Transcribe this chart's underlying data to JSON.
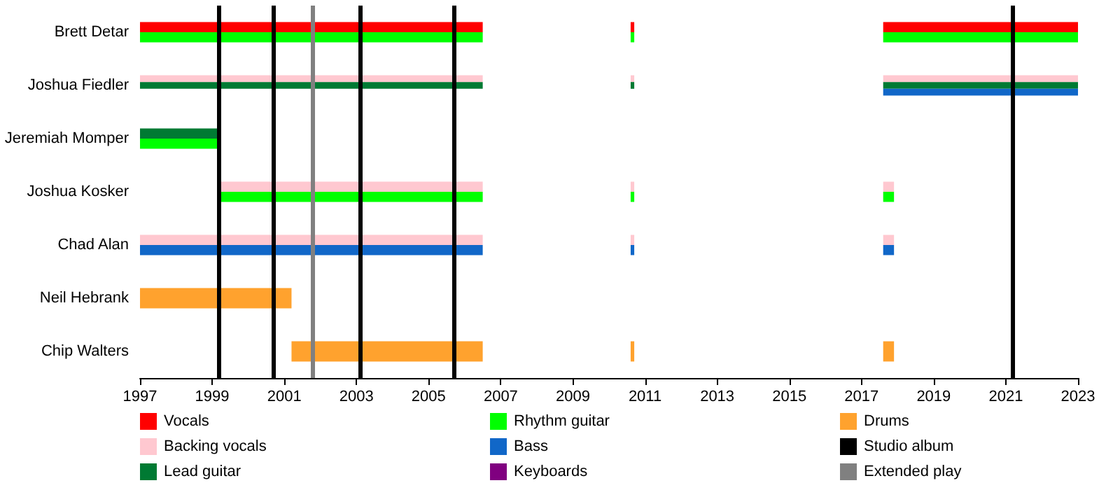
{
  "chart_data": {
    "type": "bar",
    "orientation": "horizontal",
    "categories": [
      "Brett Detar",
      "Joshua Fiedler",
      "Jeremiah Momper",
      "Joshua Kosker",
      "Chad Alan",
      "Neil Hebrank",
      "Chip Walters"
    ],
    "series": [
      {
        "name": "Vocals",
        "color": "#ff0000",
        "base": [
          1997,
          null,
          null,
          null,
          null,
          null,
          null
        ],
        "values": [
          9.5,
          null,
          null,
          null,
          null,
          null,
          null
        ]
      },
      {
        "color": "#ff0000",
        "base": [
          2010.6,
          null,
          null,
          null,
          null,
          null,
          null
        ],
        "values": [
          0.1,
          null,
          null,
          null,
          null,
          null,
          null
        ]
      },
      {
        "color": "#ff0000",
        "base": [
          2017.6,
          null,
          null,
          null,
          null,
          null,
          null
        ],
        "values": [
          5.4,
          null,
          null,
          null,
          null,
          null,
          null
        ]
      },
      {
        "name": "Backing vocals",
        "color": "#ffc8d0",
        "base": [
          null,
          1997,
          null,
          1999.2,
          1997,
          null,
          null
        ],
        "values": [
          null,
          9.5,
          null,
          7.3,
          9.5,
          null,
          null
        ]
      },
      {
        "color": "#ffc8d0",
        "base": [
          null,
          2010.6,
          null,
          2010.6,
          2010.6,
          null,
          null
        ],
        "values": [
          null,
          0.1,
          null,
          0.1,
          0.1,
          null,
          null
        ]
      },
      {
        "color": "#ffc8d0",
        "base": [
          null,
          2017.6,
          null,
          2017.6,
          2017.6,
          null,
          null
        ],
        "values": [
          null,
          5.4,
          null,
          0.3,
          0.3,
          null,
          null
        ]
      },
      {
        "name": "Lead guitar",
        "color": "#007a33",
        "base": [
          null,
          1997,
          1997,
          null,
          null,
          null,
          null
        ],
        "values": [
          null,
          9.5,
          2.2,
          null,
          null,
          null,
          null
        ]
      },
      {
        "color": "#007a33",
        "base": [
          null,
          2010.6,
          null,
          null,
          null,
          null,
          null
        ],
        "values": [
          null,
          0.1,
          null,
          null,
          null,
          null,
          null
        ]
      },
      {
        "color": "#007a33",
        "base": [
          null,
          2017.6,
          null,
          null,
          null,
          null,
          null
        ],
        "values": [
          null,
          5.4,
          null,
          null,
          null,
          null,
          null
        ]
      },
      {
        "name": "Rhythm guitar",
        "color": "#00ff00",
        "base": [
          1997,
          null,
          1997,
          1999.2,
          null,
          null,
          null
        ],
        "values": [
          9.5,
          null,
          2.2,
          7.3,
          null,
          null,
          null
        ]
      },
      {
        "color": "#00ff00",
        "base": [
          2010.6,
          null,
          null,
          2010.6,
          null,
          null,
          null
        ],
        "values": [
          0.1,
          null,
          null,
          0.1,
          null,
          null,
          null
        ]
      },
      {
        "color": "#00ff00",
        "base": [
          2017.6,
          null,
          null,
          2017.6,
          null,
          null,
          null
        ],
        "values": [
          5.4,
          null,
          null,
          0.3,
          null,
          null,
          null
        ]
      },
      {
        "name": "Bass",
        "color": "#1167c8",
        "base": [
          null,
          null,
          null,
          null,
          1997,
          null,
          null
        ],
        "values": [
          null,
          null,
          null,
          null,
          9.5,
          null,
          null
        ]
      },
      {
        "color": "#1167c8",
        "base": [
          null,
          null,
          null,
          null,
          2010.6,
          null,
          null
        ],
        "values": [
          null,
          null,
          null,
          null,
          0.1,
          null,
          null
        ]
      },
      {
        "color": "#1167c8",
        "base": [
          null,
          2017.6,
          null,
          null,
          2017.6,
          null,
          null
        ],
        "values": [
          null,
          5.4,
          null,
          null,
          0.3,
          null,
          null
        ]
      },
      {
        "name": "Keyboards",
        "color": "#800080",
        "base": [
          null,
          null,
          null,
          null,
          null,
          null,
          null
        ],
        "values": [
          null,
          null,
          null,
          null,
          null,
          null,
          null
        ]
      },
      {
        "name": "Drums",
        "color": "#ffa22e",
        "base": [
          null,
          null,
          null,
          null,
          null,
          1997,
          2001.2
        ],
        "values": [
          null,
          null,
          null,
          null,
          null,
          4.2,
          5.3
        ]
      },
      {
        "color": "#ffa22e",
        "base": [
          null,
          null,
          null,
          null,
          null,
          null,
          2010.6
        ],
        "values": [
          null,
          null,
          null,
          null,
          null,
          null,
          0.1
        ]
      },
      {
        "color": "#ffa22e",
        "base": [
          null,
          null,
          null,
          null,
          null,
          null,
          2017.6
        ],
        "values": [
          null,
          null,
          null,
          null,
          null,
          null,
          0.3
        ]
      }
    ],
    "ref_lines": [
      {
        "axis": "x",
        "value": 1999.2,
        "label": "Studio album",
        "color": "#000000"
      },
      {
        "axis": "x",
        "value": 2000.7,
        "color": "#000000"
      },
      {
        "axis": "x",
        "value": 2003.1,
        "color": "#000000"
      },
      {
        "axis": "x",
        "value": 2005.7,
        "color": "#000000"
      },
      {
        "axis": "x",
        "value": 2021.2,
        "color": "#000000"
      },
      {
        "axis": "x",
        "value": 2001.8,
        "label": "Extended play",
        "color": "#808080"
      }
    ],
    "xlim": [
      1997,
      2023
    ],
    "xticks": [
      1997,
      1999,
      2001,
      2003,
      2005,
      2007,
      2009,
      2011,
      2013,
      2015,
      2017,
      2019,
      2021,
      2023
    ],
    "grid": false,
    "legend": "bottom"
  }
}
